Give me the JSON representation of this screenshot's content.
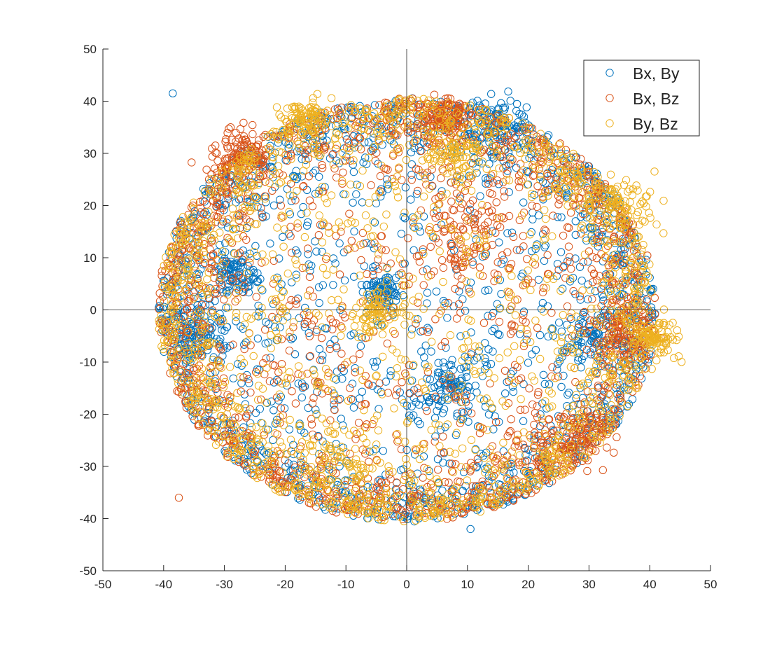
{
  "chart_data": {
    "type": "scatter",
    "title": "",
    "xlabel": "",
    "ylabel": "",
    "xlim": [
      -50,
      50
    ],
    "ylim": [
      -50,
      50
    ],
    "xticks": [
      -50,
      -40,
      -30,
      -20,
      -10,
      0,
      10,
      20,
      30,
      40,
      50
    ],
    "yticks": [
      -50,
      -40,
      -30,
      -20,
      -10,
      0,
      10,
      20,
      30,
      40,
      50
    ],
    "grid": false,
    "axes_lines_at_origin": true,
    "marker": "open-circle",
    "legend": {
      "position": "top-right"
    },
    "distribution": {
      "shape": "ring-filled-disk",
      "approx_radius": 41,
      "edge_density": "high",
      "points_per_series_approx": 2200
    },
    "series": [
      {
        "name": "Bx, By",
        "color": "#0072BD",
        "clusters": [
          [
            -28,
            7,
            2.0
          ],
          [
            7,
            -15,
            2.2
          ],
          [
            -4,
            4,
            1.5
          ],
          [
            30,
            -5,
            2.5
          ],
          [
            -35,
            -5,
            2.5
          ],
          [
            15,
            35,
            3
          ]
        ],
        "outliers": [
          [
            -38.5,
            41.5
          ],
          [
            10.5,
            -42
          ]
        ]
      },
      {
        "name": "Bx, Bz",
        "color": "#D95319",
        "clusters": [
          [
            6,
            37,
            1.8
          ],
          [
            -27,
            30,
            2.5
          ],
          [
            28,
            -25,
            3
          ],
          [
            35,
            -5,
            2.5
          ],
          [
            10,
            15,
            4
          ]
        ],
        "outliers": [
          [
            -37.5,
            -36
          ]
        ]
      },
      {
        "name": "By, Bz",
        "color": "#EDB120",
        "clusters": [
          [
            -17,
            37,
            2.0
          ],
          [
            7,
            30,
            2.0
          ],
          [
            -5,
            0,
            2.0
          ],
          [
            41,
            -5,
            2.0
          ],
          [
            -10,
            -30,
            4
          ],
          [
            35,
            20,
            3
          ]
        ],
        "outliers": []
      }
    ]
  }
}
